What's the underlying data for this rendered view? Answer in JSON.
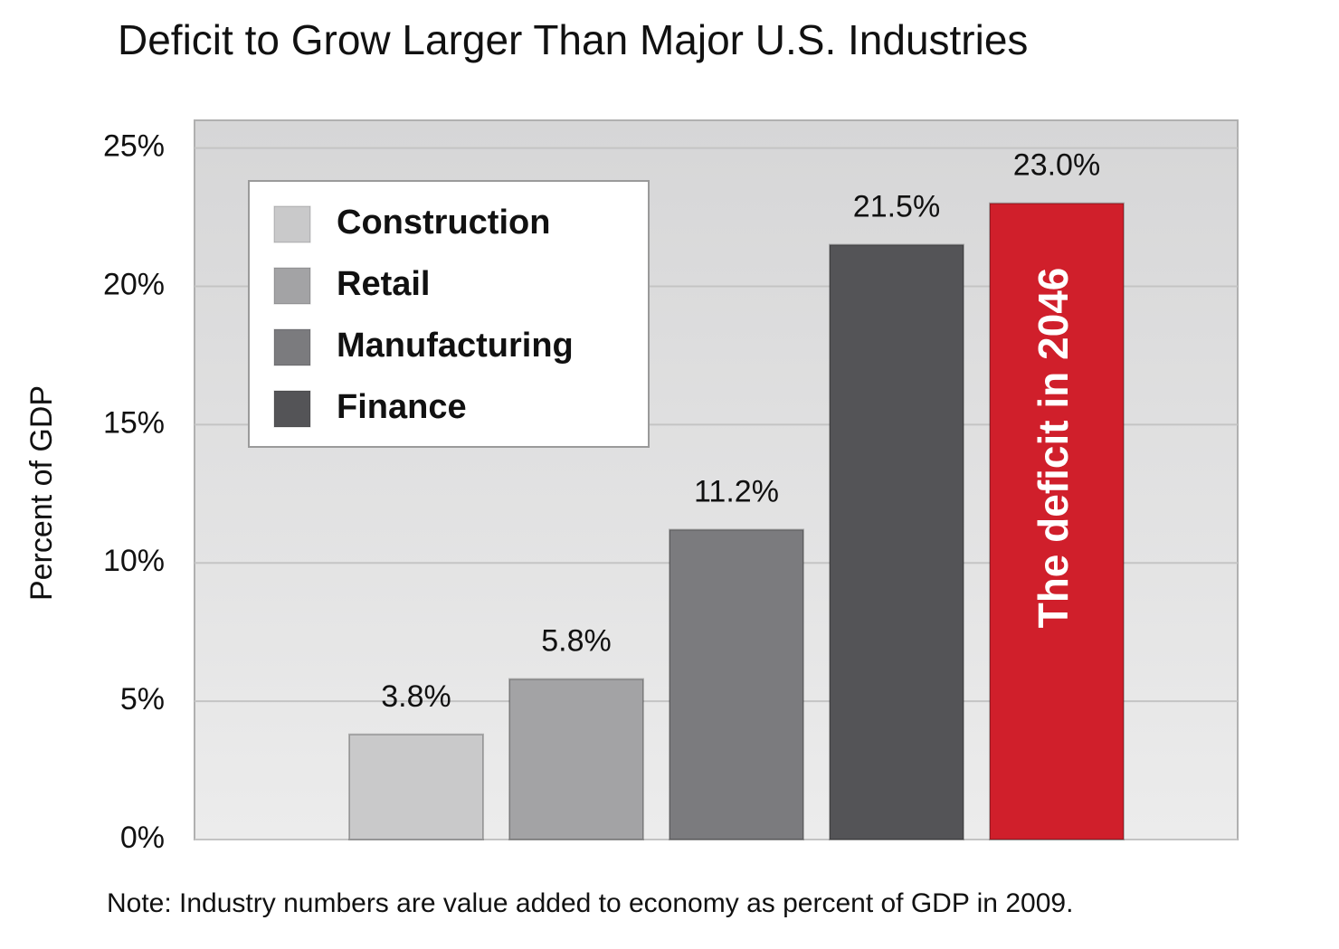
{
  "chart_data": {
    "type": "bar",
    "title": "Deficit to Grow Larger Than Major U.S. Industries",
    "y_label": "Percent of GDP",
    "note": "Note: Industry numbers are value added to economy as percent of GDP in 2009.",
    "categories": [
      "Construction",
      "Retail",
      "Manufacturing",
      "Finance",
      "The deficit in 2046"
    ],
    "values": [
      3.8,
      5.8,
      11.2,
      21.5,
      23.0
    ],
    "value_labels": [
      "3.8%",
      "5.8%",
      "11.2%",
      "21.5%",
      "23.0%"
    ],
    "colors": [
      "#c9c9ca",
      "#a3a3a5",
      "#7b7b7e",
      "#545457",
      "#d01f2b"
    ],
    "ylim": [
      0,
      26
    ],
    "yticks": [
      {
        "value": 0,
        "label": "0%"
      },
      {
        "value": 5,
        "label": "5%"
      },
      {
        "value": 10,
        "label": "10%"
      },
      {
        "value": 15,
        "label": "15%"
      },
      {
        "value": 20,
        "label": "20%"
      },
      {
        "value": 25,
        "label": "25%"
      }
    ],
    "grid": true,
    "legend": "upper left"
  }
}
